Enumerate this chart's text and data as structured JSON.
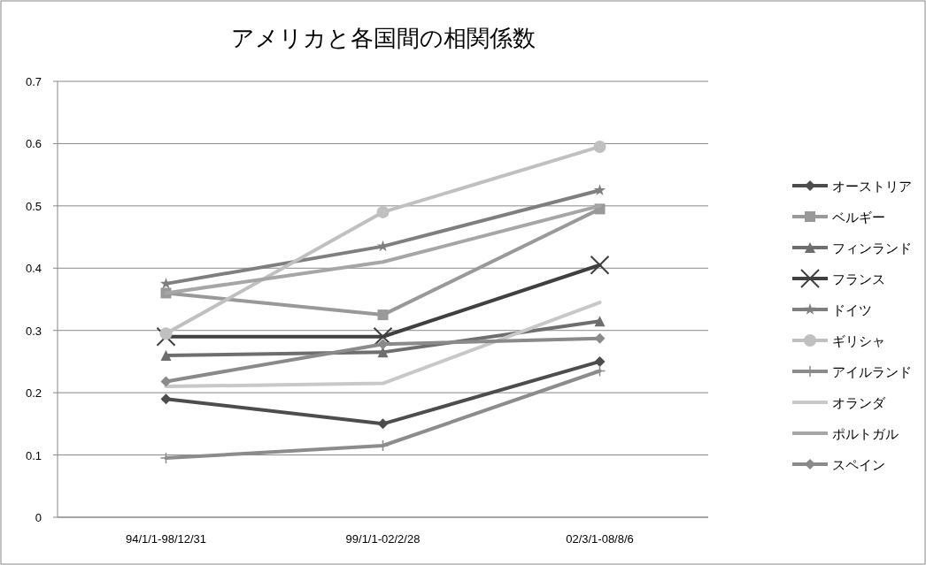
{
  "chart_data": {
    "type": "line",
    "title": "アメリカと各国間の相関係数",
    "categories": [
      "94/1/1-98/12/31",
      "99/1/1-02/2/28",
      "02/3/1-08/8/6"
    ],
    "ylim": [
      0,
      0.7
    ],
    "yticks": [
      0,
      0.1,
      0.2,
      0.3,
      0.4,
      0.5,
      0.6,
      0.7
    ],
    "grid": "y",
    "legend": "right",
    "line_style": "solid",
    "series": [
      {
        "name": "オーストリア",
        "color": "#4d4d4d",
        "marker": "diamond",
        "values": [
          0.19,
          0.15,
          0.25
        ]
      },
      {
        "name": "ベルギー",
        "color": "#999999",
        "marker": "square",
        "values": [
          0.36,
          0.325,
          0.495
        ]
      },
      {
        "name": "フィンランド",
        "color": "#6e6e6e",
        "marker": "triangle",
        "values": [
          0.26,
          0.265,
          0.315
        ]
      },
      {
        "name": "フランス",
        "color": "#404040",
        "marker": "cross",
        "values": [
          0.29,
          0.29,
          0.405
        ]
      },
      {
        "name": "ドイツ",
        "color": "#7f7f7f",
        "marker": "star",
        "values": [
          0.375,
          0.435,
          0.525
        ]
      },
      {
        "name": "ギリシャ",
        "color": "#c0c0c0",
        "marker": "circle",
        "values": [
          0.295,
          0.49,
          0.595
        ]
      },
      {
        "name": "アイルランド",
        "color": "#8c8c8c",
        "marker": "plus",
        "values": [
          0.095,
          0.115,
          0.235
        ]
      },
      {
        "name": "オランダ",
        "color": "#c8c8c8",
        "marker": "none",
        "values": [
          0.21,
          0.215,
          0.345
        ]
      },
      {
        "name": "ポルトガル",
        "color": "#a6a6a6",
        "marker": "none",
        "values": [
          0.36,
          0.41,
          0.5
        ]
      },
      {
        "name": "スペイン",
        "color": "#8a8a8a",
        "marker": "diamond",
        "values": [
          0.218,
          0.278,
          0.287
        ]
      }
    ]
  }
}
